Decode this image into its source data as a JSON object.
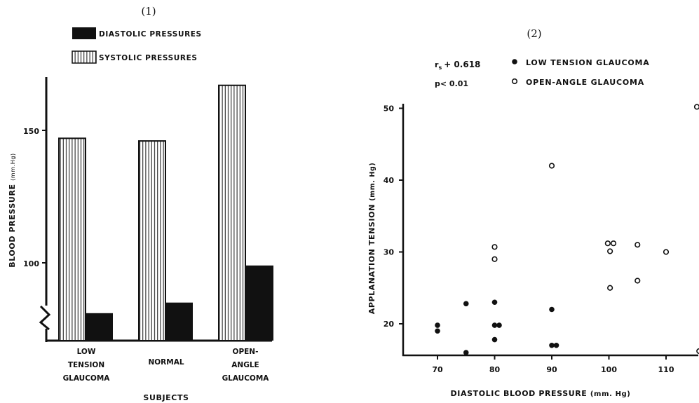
{
  "charts": {
    "left": {
      "panel_label": "(1)",
      "legend": {
        "diastolic": "DIASTOLIC PRESSURES",
        "systolic": "SYSTOLIC PRESSURES"
      },
      "ylabel": "BLOOD PRESSURE",
      "ylabel_unit": "(mm.Hg)",
      "xlabel": "SUBJECTS",
      "category_lines": [
        [
          "LOW",
          "TENSION",
          "GLAUCOMA"
        ],
        [
          "NORMAL"
        ],
        [
          "OPEN-",
          "ANGLE",
          "GLAUCOMA"
        ]
      ],
      "yticks": [
        "150",
        "100"
      ]
    },
    "right": {
      "panel_label": "(2)",
      "stats_r_prefix": "r",
      "stats_r_sub": "s",
      "stats_r_value": "+ 0.618",
      "stats_p": "p< 0.01",
      "legend": {
        "low_tension": "LOW TENSION GLAUCOMA",
        "open_angle": "OPEN-ANGLE GLAUCOMA"
      },
      "ylabel": "APPLANATION TENSION",
      "ylabel_unit": "(mm. Hg)",
      "xlabel": "DIASTOLIC BLOOD PRESSURE",
      "xlabel_unit": "(mm. Hg)",
      "xticks": [
        "70",
        "80",
        "90",
        "100",
        "110"
      ],
      "yticks": [
        "20",
        "30",
        "40",
        "50"
      ]
    }
  },
  "colors": {
    "ink": "#111111",
    "background": "#ffffff"
  },
  "chart_data": [
    {
      "type": "bar",
      "categories": [
        "LOW TENSION GLAUCOMA",
        "NORMAL",
        "OPEN-ANGLE GLAUCOMA"
      ],
      "series": [
        {
          "name": "SYSTOLIC PRESSURES",
          "values": [
            147,
            146,
            167
          ],
          "pattern": "vertical-hatch"
        },
        {
          "name": "DIASTOLIC PRESSURES",
          "values": [
            81,
            85,
            99
          ],
          "pattern": "solid-black"
        }
      ],
      "xlabel": "SUBJECTS",
      "ylabel": "BLOOD PRESSURE (mm.Hg)",
      "ylim": [
        71,
        172
      ],
      "axis_break": true,
      "grid": false,
      "legend_position": "top"
    },
    {
      "type": "scatter",
      "xlabel": "DIASTOLIC BLOOD PRESSURE (mm. Hg)",
      "ylabel": "APPLANATION TENSION (mm. Hg)",
      "xlim": [
        65,
        116
      ],
      "ylim": [
        15.8,
        50.6
      ],
      "grid": false,
      "legend_position": "top",
      "annotations": [
        "r_s + 0.618",
        "p< 0.01"
      ],
      "series": [
        {
          "name": "LOW TENSION GLAUCOMA",
          "marker": "filled-circle",
          "points": [
            [
              70,
              19.8
            ],
            [
              70,
              19
            ],
            [
              75,
              22.8
            ],
            [
              75,
              16
            ],
            [
              80,
              23
            ],
            [
              80,
              19.8
            ],
            [
              80.8,
              19.8
            ],
            [
              80,
              17.8
            ],
            [
              90,
              22
            ],
            [
              90,
              17
            ],
            [
              90.8,
              17
            ]
          ]
        },
        {
          "name": "OPEN-ANGLE GLAUCOMA",
          "marker": "open-circle",
          "points": [
            [
              80,
              30.7
            ],
            [
              80,
              29
            ],
            [
              90,
              42
            ],
            [
              99.8,
              31.2
            ],
            [
              100.8,
              31.2
            ],
            [
              100.2,
              30.1
            ],
            [
              100.2,
              25
            ],
            [
              105,
              31
            ],
            [
              105,
              26
            ],
            [
              110,
              30
            ],
            [
              115.4,
              50.2
            ],
            [
              115.8,
              16.2
            ]
          ]
        }
      ]
    }
  ]
}
